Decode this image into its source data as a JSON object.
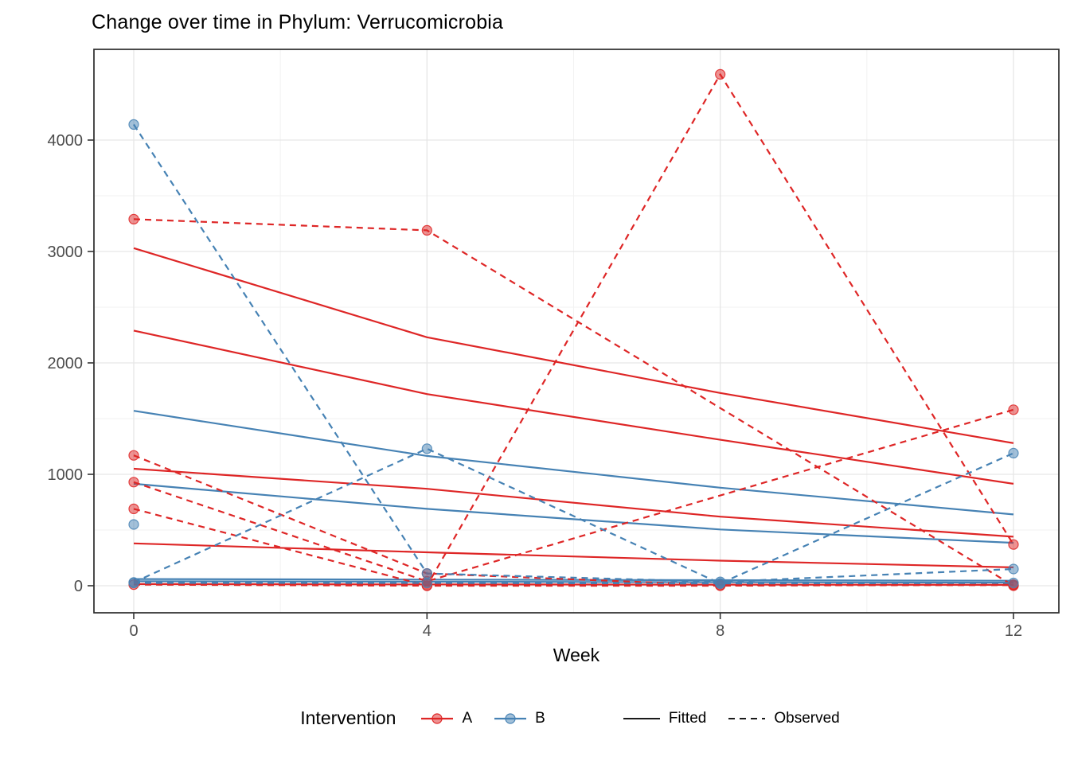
{
  "figure": {
    "title": "Change over time in Phylum: Verrucomicrobia"
  },
  "chart_data": {
    "type": "line",
    "title": "Change over time in Phylum: Verrucomicrobia",
    "xlabel": "Week",
    "ylabel": "",
    "x": [
      0,
      4,
      8,
      12
    ],
    "x_ticks": [
      0,
      4,
      8,
      12
    ],
    "x_minor": [
      2,
      6,
      10
    ],
    "y_ticks": [
      0,
      1000,
      2000,
      3000,
      4000
    ],
    "y_minor": [
      500,
      1500,
      2500,
      3500
    ],
    "ylim": [
      -250,
      4820
    ],
    "grid": "on",
    "legend_position": "bottom",
    "groups": {
      "A": {
        "label": "A",
        "color": "#de2626"
      },
      "B": {
        "label": "B",
        "color": "#4682b4"
      }
    },
    "series": [
      {
        "id": "A-s1-fitted",
        "group": "A",
        "linetype": "fitted",
        "values": [
          3030,
          2230,
          1730,
          1280
        ]
      },
      {
        "id": "A-s1-observed",
        "group": "A",
        "linetype": "observed",
        "values": [
          3290,
          3190,
          null,
          0
        ]
      },
      {
        "id": "A-s2-fitted",
        "group": "A",
        "linetype": "fitted",
        "values": [
          380,
          300,
          225,
          165
        ]
      },
      {
        "id": "A-s2-observed",
        "group": "A",
        "linetype": "observed",
        "values": [
          1170,
          110,
          5,
          5
        ]
      },
      {
        "id": "A-s3-fitted",
        "group": "A",
        "linetype": "fitted",
        "values": [
          1050,
          870,
          620,
          440
        ]
      },
      {
        "id": "A-s3-observed",
        "group": "A",
        "linetype": "observed",
        "values": [
          930,
          40,
          null,
          1580
        ]
      },
      {
        "id": "A-s4-fitted",
        "group": "A",
        "linetype": "fitted",
        "values": [
          2290,
          1720,
          1310,
          915
        ]
      },
      {
        "id": "A-s4-observed",
        "group": "A",
        "linetype": "observed",
        "values": [
          690,
          0,
          4590,
          370
        ]
      },
      {
        "id": "A-s5-fitted",
        "group": "A",
        "linetype": "fitted",
        "values": [
          15,
          12,
          10,
          8
        ]
      },
      {
        "id": "A-s5-observed",
        "group": "A",
        "linetype": "observed",
        "values": [
          10,
          0,
          0,
          10
        ]
      },
      {
        "id": "B-s1-fitted",
        "group": "B",
        "linetype": "fitted",
        "values": [
          1570,
          1165,
          880,
          640
        ]
      },
      {
        "id": "B-s1-observed",
        "group": "B",
        "linetype": "observed",
        "values": [
          4140,
          110,
          35,
          150
        ]
      },
      {
        "id": "B-s2-fitted",
        "group": "B",
        "linetype": "fitted",
        "values": [
          915,
          690,
          505,
          385
        ]
      },
      {
        "id": "B-s2-observed",
        "group": "B",
        "linetype": "observed",
        "values": [
          30,
          1230,
          20,
          1190
        ]
      },
      {
        "id": "B-s3-fitted",
        "group": "B",
        "linetype": "fitted",
        "values": [
          60,
          55,
          50,
          45
        ]
      },
      {
        "id": "B-s3-observed",
        "group": "B",
        "linetype": "observed",
        "values": [
          25,
          25,
          20,
          25
        ]
      },
      {
        "id": "B-s4-fitted",
        "group": "B",
        "linetype": "fitted",
        "values": [
          40,
          36,
          32,
          28
        ]
      },
      {
        "id": "B-s4-observed",
        "group": "B",
        "linetype": "observed",
        "values": [
          550,
          null,
          null,
          null
        ]
      }
    ],
    "legend": {
      "title": "Intervention",
      "group_items": [
        {
          "label": "A",
          "color": "#de2626"
        },
        {
          "label": "B",
          "color": "#4682b4"
        }
      ],
      "linetype_items": [
        {
          "label": "Fitted",
          "style": "solid"
        },
        {
          "label": "Observed",
          "style": "dashed"
        }
      ]
    },
    "style": {
      "panel_border": "#2b2b2b",
      "grid_major": "#e6e6e6",
      "grid_minor": "#f2f2f2",
      "tick_label_color": "#4d4d4d",
      "key_line_color": "#1a1a1a",
      "point_alpha": 0.5
    }
  }
}
